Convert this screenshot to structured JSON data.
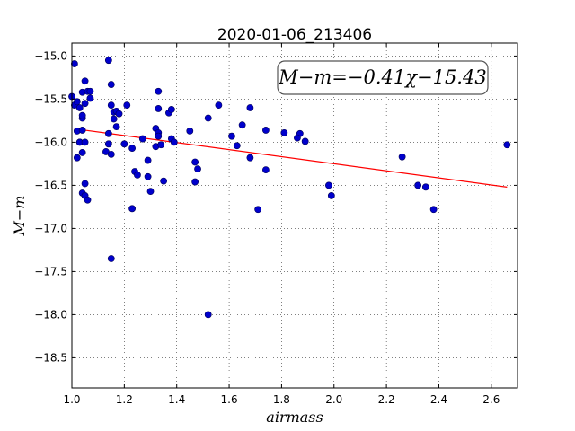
{
  "chart_data": {
    "type": "scatter",
    "title": "2020-01-06_213406",
    "xlabel": "airmass",
    "ylabel": "M−m",
    "xlim": [
      1.0,
      2.7
    ],
    "ylim": [
      -18.85,
      -14.85
    ],
    "invert_y": true,
    "grid": true,
    "x_ticks": [
      1.0,
      1.2,
      1.4,
      1.6,
      1.8,
      2.0,
      2.2,
      2.4,
      2.6
    ],
    "x_tick_labels": [
      "1.0",
      "1.2",
      "1.4",
      "1.6",
      "1.8",
      "2.0",
      "2.2",
      "2.4",
      "2.6"
    ],
    "y_ticks": [
      -15.0,
      -15.5,
      -16.0,
      -16.5,
      -17.0,
      -17.5,
      -18.0,
      -18.5
    ],
    "y_tick_labels": [
      "−15.0",
      "−15.5",
      "−16.0",
      "−16.5",
      "−17.0",
      "−17.5",
      "−18.0",
      "−18.5"
    ],
    "annotation": "M−m=−0.41χ−15.43",
    "annotation_placement": "top-right",
    "fit": {
      "slope": -0.41,
      "intercept": -15.43,
      "x_range": [
        1.01,
        2.66
      ],
      "color": "#ff0000"
    },
    "marker_color": "#0000cc",
    "points": [
      [
        1.0,
        -15.47
      ],
      [
        1.01,
        -15.09
      ],
      [
        1.01,
        -15.57
      ],
      [
        1.02,
        -15.53
      ],
      [
        1.02,
        -15.87
      ],
      [
        1.03,
        -16.0
      ],
      [
        1.02,
        -16.18
      ],
      [
        1.03,
        -15.6
      ],
      [
        1.04,
        -15.42
      ],
      [
        1.05,
        -15.29
      ],
      [
        1.06,
        -15.41
      ],
      [
        1.05,
        -15.55
      ],
      [
        1.04,
        -15.72
      ],
      [
        1.04,
        -15.69
      ],
      [
        1.04,
        -15.86
      ],
      [
        1.03,
        -16.0
      ],
      [
        1.04,
        -16.12
      ],
      [
        1.05,
        -16.0
      ],
      [
        1.05,
        -16.48
      ],
      [
        1.04,
        -16.59
      ],
      [
        1.05,
        -16.62
      ],
      [
        1.06,
        -16.67
      ],
      [
        1.07,
        -15.41
      ],
      [
        1.07,
        -15.49
      ],
      [
        1.14,
        -15.05
      ],
      [
        1.15,
        -15.33
      ],
      [
        1.15,
        -15.57
      ],
      [
        1.16,
        -15.65
      ],
      [
        1.17,
        -15.64
      ],
      [
        1.18,
        -15.67
      ],
      [
        1.16,
        -15.73
      ],
      [
        1.17,
        -15.82
      ],
      [
        1.14,
        -15.9
      ],
      [
        1.14,
        -16.02
      ],
      [
        1.13,
        -16.11
      ],
      [
        1.15,
        -16.14
      ],
      [
        1.2,
        -16.02
      ],
      [
        1.21,
        -15.57
      ],
      [
        1.23,
        -16.07
      ],
      [
        1.23,
        -16.77
      ],
      [
        1.24,
        -16.34
      ],
      [
        1.25,
        -16.38
      ],
      [
        1.27,
        -15.96
      ],
      [
        1.29,
        -16.21
      ],
      [
        1.29,
        -16.4
      ],
      [
        1.3,
        -16.57
      ],
      [
        1.32,
        -15.84
      ],
      [
        1.33,
        -15.89
      ],
      [
        1.33,
        -15.93
      ],
      [
        1.32,
        -16.05
      ],
      [
        1.34,
        -16.03
      ],
      [
        1.33,
        -15.41
      ],
      [
        1.33,
        -15.61
      ],
      [
        1.37,
        -15.66
      ],
      [
        1.38,
        -15.62
      ],
      [
        1.38,
        -15.96
      ],
      [
        1.39,
        -16.0
      ],
      [
        1.35,
        -16.45
      ],
      [
        1.15,
        -17.35
      ],
      [
        1.45,
        -15.87
      ],
      [
        1.47,
        -16.23
      ],
      [
        1.48,
        -16.31
      ],
      [
        1.47,
        -16.46
      ],
      [
        1.52,
        -15.72
      ],
      [
        1.56,
        -15.57
      ],
      [
        1.61,
        -15.93
      ],
      [
        1.63,
        -16.04
      ],
      [
        1.65,
        -15.8
      ],
      [
        1.68,
        -15.6
      ],
      [
        1.68,
        -16.18
      ],
      [
        1.71,
        -16.78
      ],
      [
        1.74,
        -15.86
      ],
      [
        1.74,
        -16.32
      ],
      [
        1.81,
        -15.89
      ],
      [
        1.87,
        -15.9
      ],
      [
        1.86,
        -15.95
      ],
      [
        1.89,
        -15.99
      ],
      [
        1.98,
        -16.5
      ],
      [
        1.99,
        -16.62
      ],
      [
        1.52,
        -18.0
      ],
      [
        2.26,
        -16.17
      ],
      [
        2.32,
        -16.5
      ],
      [
        2.35,
        -16.52
      ],
      [
        2.38,
        -16.78
      ],
      [
        2.66,
        -16.03
      ]
    ]
  }
}
